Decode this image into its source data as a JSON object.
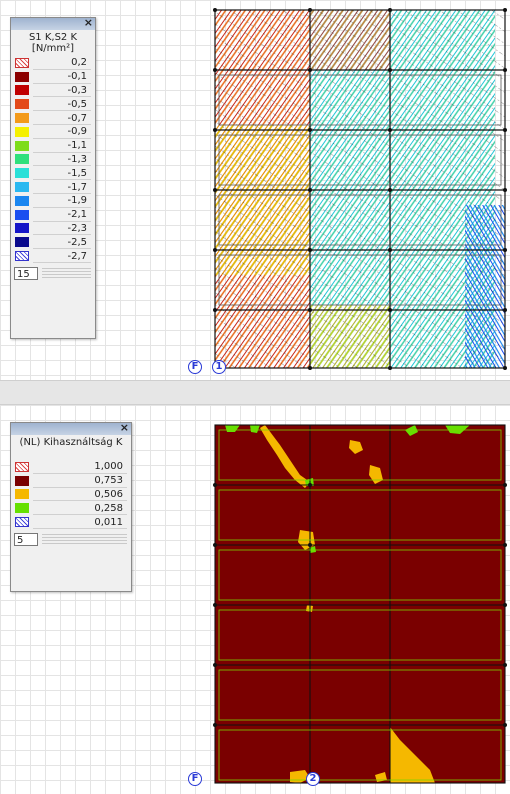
{
  "top_view": {
    "legend": {
      "title_line1": "S1 K,S2 K",
      "unit": "[N/mm²]",
      "items": [
        {
          "value": "0,2",
          "color": "hatch-red"
        },
        {
          "value": "-0,1",
          "color": "#8b0000"
        },
        {
          "value": "-0,3",
          "color": "#c00000"
        },
        {
          "value": "-0,5",
          "color": "#e34a1a"
        },
        {
          "value": "-0,7",
          "color": "#f39a1a"
        },
        {
          "value": "-0,9",
          "color": "#f5f000"
        },
        {
          "value": "-1,1",
          "color": "#7ddc1a"
        },
        {
          "value": "-1,3",
          "color": "#2fe07c"
        },
        {
          "value": "-1,5",
          "color": "#2ae0d8"
        },
        {
          "value": "-1,7",
          "color": "#2ab8f0"
        },
        {
          "value": "-1,9",
          "color": "#1a86f0"
        },
        {
          "value": "-2,1",
          "color": "#1a4ef0"
        },
        {
          "value": "-2,3",
          "color": "#1616c8"
        },
        {
          "value": "-2,5",
          "color": "#0a0a8c"
        },
        {
          "value": "-2,7",
          "color": "hatch-blue"
        }
      ],
      "count": "15"
    },
    "marker_f": "F",
    "marker_node": "1"
  },
  "bottom_view": {
    "legend": {
      "title": "(NL) Kihasználtság K",
      "items": [
        {
          "value": "1,000",
          "color": "hatch-red"
        },
        {
          "value": "0,753",
          "color": "#7a0000"
        },
        {
          "value": "0,506",
          "color": "#f5b800"
        },
        {
          "value": "0,258",
          "color": "#66e000"
        },
        {
          "value": "0,011",
          "color": "hatch-blue"
        }
      ],
      "count": "5"
    },
    "marker_f": "F",
    "marker_node": "2"
  },
  "colors": {
    "utilization_high": "#7a0000",
    "utilization_mid": "#f5b800",
    "utilization_low": "#66e000",
    "frame_line": "#111111",
    "node": "#2a3ad6"
  }
}
